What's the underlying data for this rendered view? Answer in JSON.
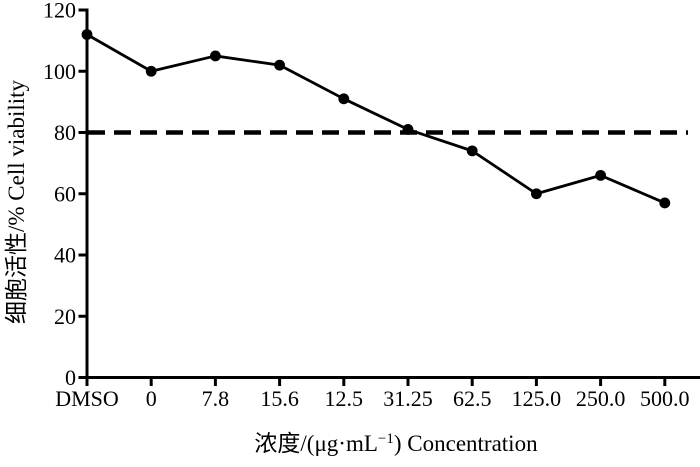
{
  "figure": {
    "background": "#ffffff",
    "ink_color": "#000000"
  },
  "chart_data": {
    "type": "line",
    "categories": [
      "DMSO",
      "0",
      "7.8",
      "15.6",
      "12.5",
      "31.25",
      "62.5",
      "125.0",
      "250.0",
      "500.0"
    ],
    "series": [
      {
        "name": "cell-viability",
        "values": [
          112,
          100,
          105,
          102,
          91,
          81,
          74,
          60,
          66,
          57
        ],
        "color": "#000000",
        "marker": "filled-circle",
        "line_style": "solid"
      }
    ],
    "title": "",
    "xlabel": "浓度/(μg·mL⁻¹) Concentration",
    "xlabel_parts": {
      "pre": "浓度/(μg·mL",
      "sup": "−1",
      "post": ") Concentration"
    },
    "ylabel": "细胞活性/% Cell viability",
    "ylim": [
      0,
      120
    ],
    "yticks": [
      0,
      20,
      40,
      60,
      80,
      100,
      120
    ],
    "reference_line": {
      "value": 80,
      "style": "dashed",
      "color": "#000000"
    },
    "grid": false,
    "legend": "none"
  }
}
